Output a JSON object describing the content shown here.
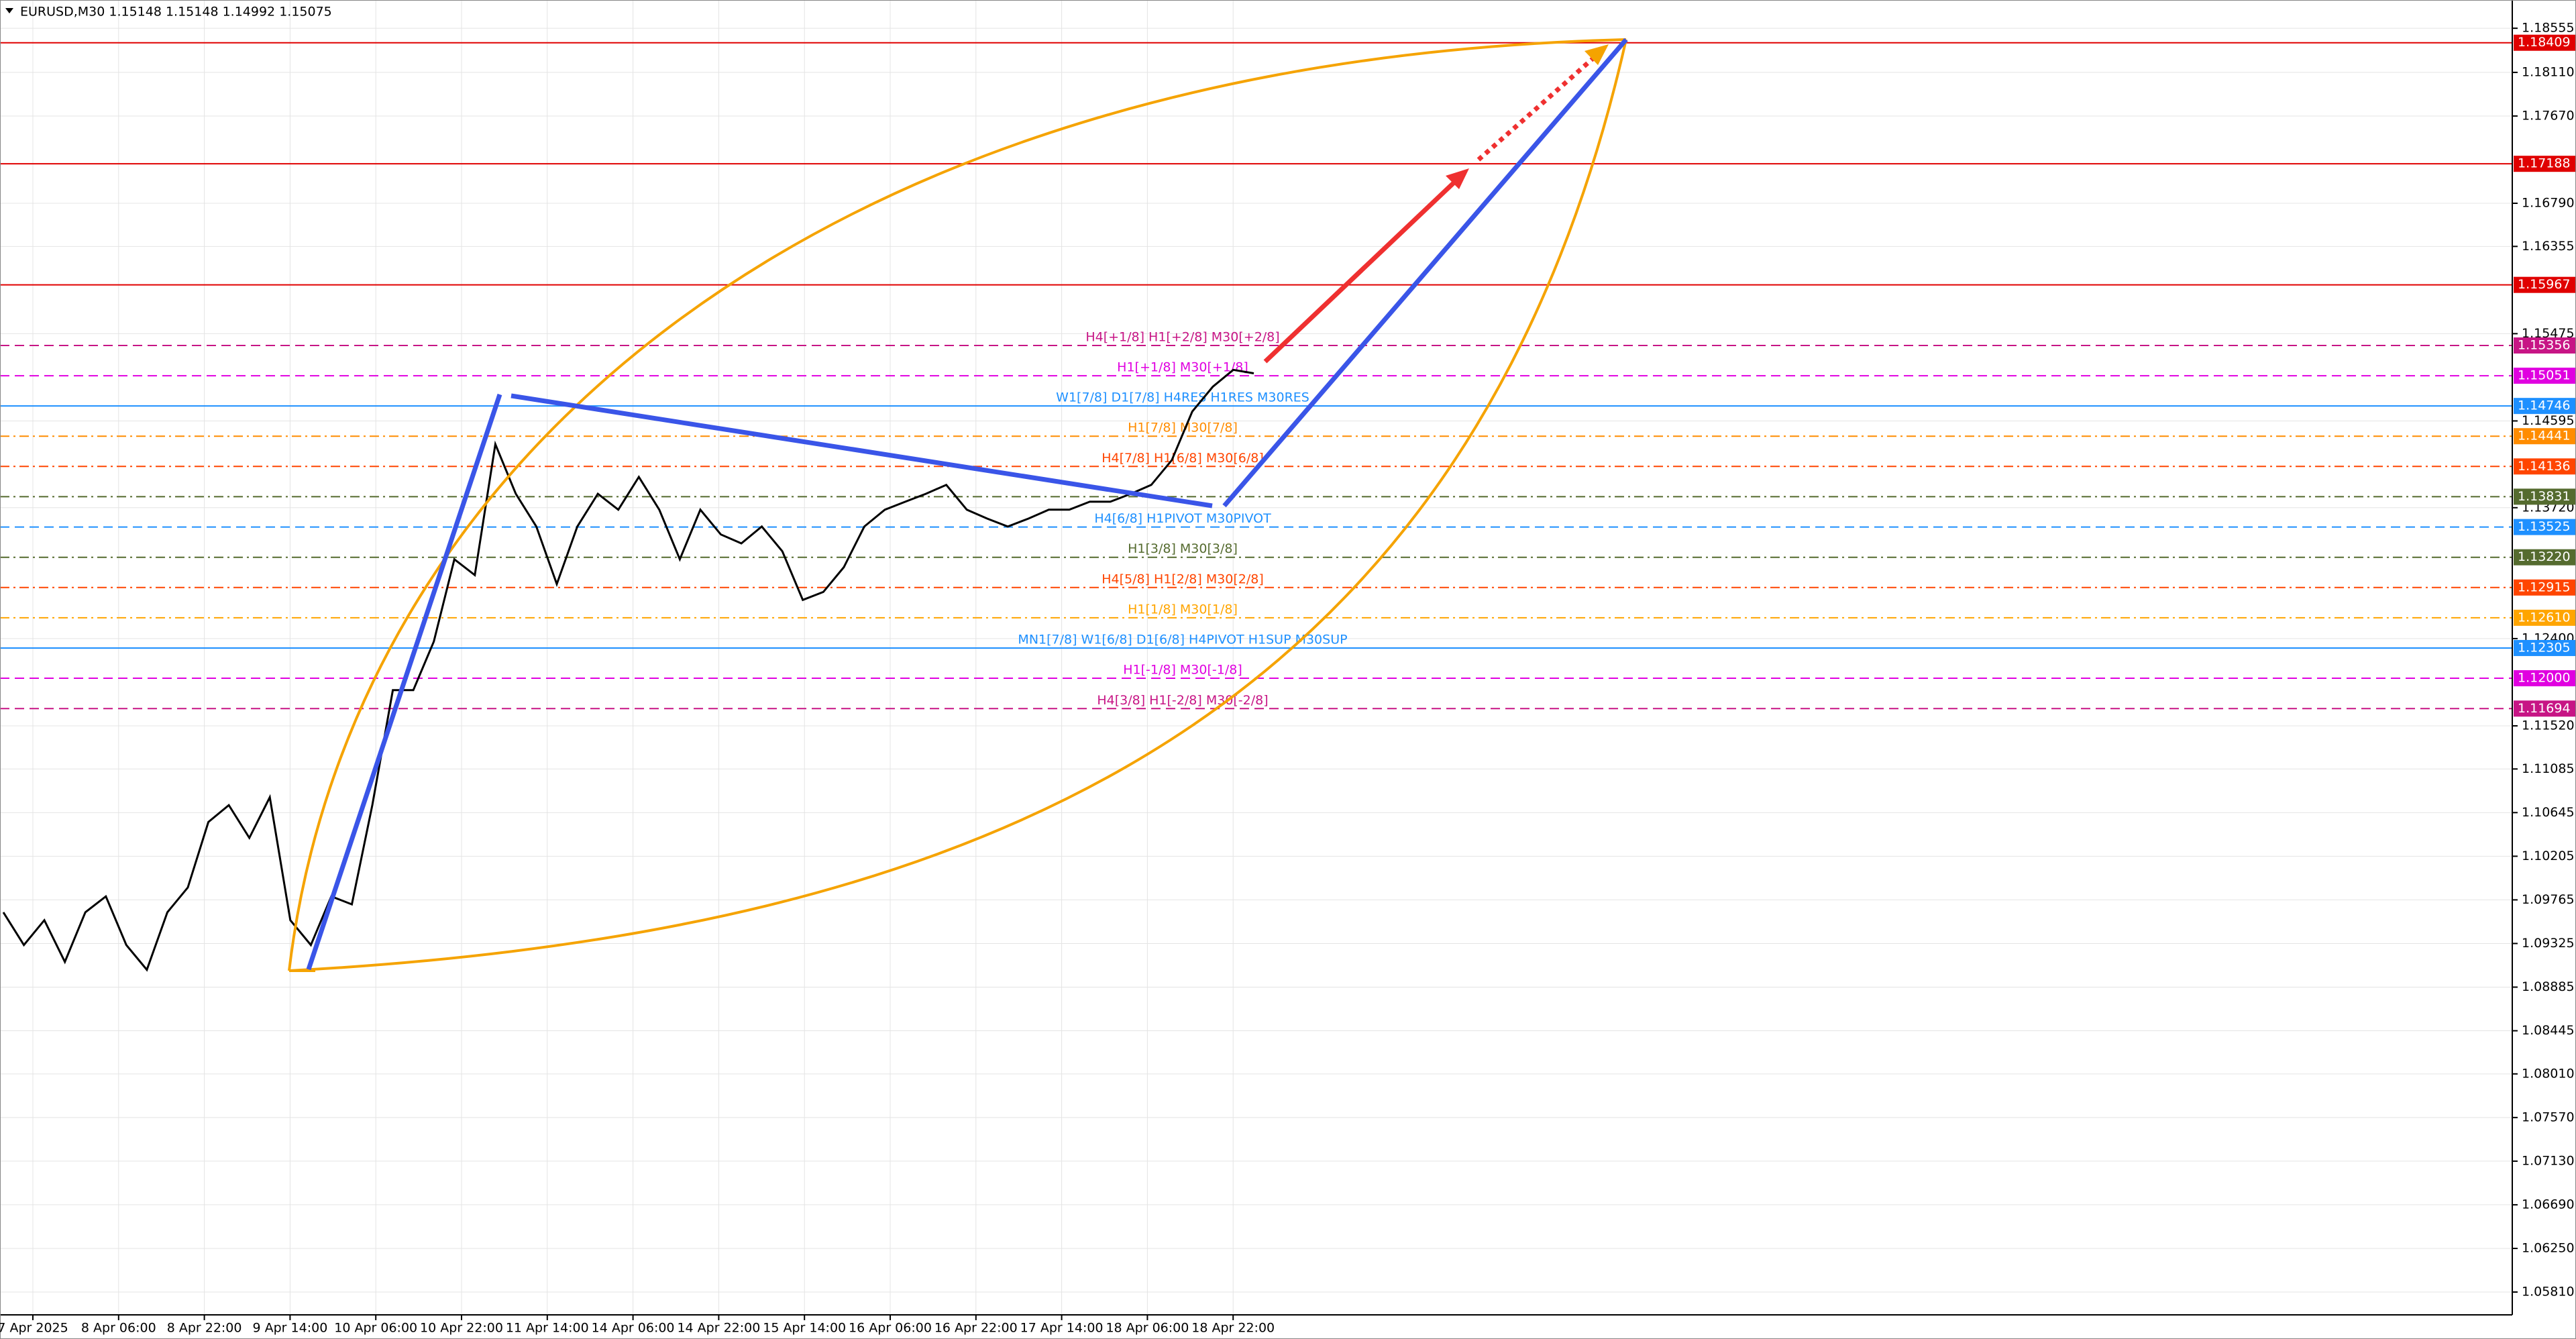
{
  "chart_data": {
    "type": "line",
    "title": "EURUSD,M30  1.15148 1.15148 1.14992 1.15075",
    "ylim": [
      1.0558,
      1.1884
    ],
    "yticks": [
      {
        "value": 1.18555,
        "label": "1.18555"
      },
      {
        "value": 1.1811,
        "label": "1.18110"
      },
      {
        "value": 1.1767,
        "label": "1.17670"
      },
      {
        "value": 1.1679,
        "label": "1.16790"
      },
      {
        "value": 1.16355,
        "label": "1.16355"
      },
      {
        "value": 1.15475,
        "label": "1.15475"
      },
      {
        "value": 1.14595,
        "label": "1.14595"
      },
      {
        "value": 1.1372,
        "label": "1.13720"
      },
      {
        "value": 1.124,
        "label": "1.12400"
      },
      {
        "value": 1.1152,
        "label": "1.11520"
      },
      {
        "value": 1.11085,
        "label": "1.11085"
      },
      {
        "value": 1.10645,
        "label": "1.10645"
      },
      {
        "value": 1.10205,
        "label": "1.10205"
      },
      {
        "value": 1.09765,
        "label": "1.09765"
      },
      {
        "value": 1.09325,
        "label": "1.09325"
      },
      {
        "value": 1.08885,
        "label": "1.08885"
      },
      {
        "value": 1.08445,
        "label": "1.08445"
      },
      {
        "value": 1.0801,
        "label": "1.08010"
      },
      {
        "value": 1.0757,
        "label": "1.07570"
      },
      {
        "value": 1.0713,
        "label": "1.07130"
      },
      {
        "value": 1.0669,
        "label": "1.06690"
      },
      {
        "value": 1.0625,
        "label": "1.06250"
      },
      {
        "value": 1.0581,
        "label": "1.05810"
      }
    ],
    "x_labels": [
      "7 Apr 2025",
      "8 Apr 06:00",
      "8 Apr 22:00",
      "9 Apr 14:00",
      "10 Apr 06:00",
      "10 Apr 22:00",
      "11 Apr 14:00",
      "14 Apr 06:00",
      "14 Apr 22:00",
      "15 Apr 14:00",
      "16 Apr 06:00",
      "16 Apr 22:00",
      "17 Apr 14:00",
      "18 Apr 06:00",
      "18 Apr 22:00"
    ],
    "grid": true,
    "series": [
      {
        "color": "#000000",
        "values": [
          1.0964,
          1.0931,
          1.0956,
          1.0914,
          1.0964,
          1.098,
          1.0931,
          1.0906,
          1.0964,
          1.0989,
          1.1055,
          1.1072,
          1.1039,
          1.108,
          1.0956,
          1.0931,
          1.098,
          1.0972,
          1.1072,
          1.1188,
          1.1188,
          1.1237,
          1.132,
          1.1304,
          1.1436,
          1.1386,
          1.1353,
          1.1295,
          1.1353,
          1.1386,
          1.137,
          1.1403,
          1.137,
          1.132,
          1.137,
          1.1345,
          1.1336,
          1.1353,
          1.1328,
          1.1279,
          1.1287,
          1.1312,
          1.1353,
          1.137,
          1.1378,
          1.1386,
          1.1395,
          1.137,
          1.1361,
          1.1353,
          1.1361,
          1.137,
          1.137,
          1.1378,
          1.1378,
          1.1386,
          1.1395,
          1.142,
          1.1469,
          1.1494,
          1.1511,
          1.15075
        ]
      }
    ],
    "levels": [
      {
        "value": 1.18409,
        "label": "1.18409",
        "color": "#e00000",
        "style": "solid"
      },
      {
        "value": 1.17188,
        "label": "1.17188",
        "color": "#e00000",
        "style": "solid"
      },
      {
        "value": 1.15967,
        "label": "1.15967",
        "color": "#e00000",
        "style": "solid"
      },
      {
        "value": 1.15356,
        "label": "1.15356",
        "color": "#c71585",
        "style": "dashed",
        "text": "H4[+1/8] H1[+2/8] M30[+2/8]"
      },
      {
        "value": 1.15051,
        "label": "1.15051",
        "color": "#e000e0",
        "style": "dashed",
        "text": "H1[+1/8] M30[+1/8]"
      },
      {
        "value": 1.14746,
        "label": "1.14746",
        "color": "#1e90ff",
        "style": "solid",
        "text": "W1[7/8] D1[7/8] H4RES H1RES M30RES"
      },
      {
        "value": 1.14441,
        "label": "1.14441",
        "color": "#ff8c00",
        "style": "dashdot",
        "text": "H1[7/8] M30[7/8]"
      },
      {
        "value": 1.14136,
        "label": "1.14136",
        "color": "#ff4500",
        "style": "dashdot",
        "text": "H4[7/8] H1[6/8] M30[6/8]"
      },
      {
        "value": 1.13831,
        "label": "1.13831",
        "color": "#556b2f",
        "style": "dashdot"
      },
      {
        "value": 1.13525,
        "label": "1.13525",
        "color": "#1e90ff",
        "style": "dashed",
        "text": "H4[6/8] H1PIVOT M30PIVOT"
      },
      {
        "value": 1.1322,
        "label": "1.13220",
        "color": "#556b2f",
        "style": "dashdot",
        "text": "H1[3/8] M30[3/8]"
      },
      {
        "value": 1.12915,
        "label": "1.12915",
        "color": "#ff4500",
        "style": "dashdot",
        "text": "H4[5/8] H1[2/8] M30[2/8]"
      },
      {
        "value": 1.1261,
        "label": "1.12610",
        "color": "#ffa500",
        "style": "dashdot",
        "text": "H1[1/8] M30[1/8]"
      },
      {
        "value": 1.12305,
        "label": "1.12305",
        "color": "#1e90ff",
        "style": "solid",
        "text": "MN1[7/8] W1[6/8] D1[6/8] H4PIVOT H1SUP M30SUP"
      },
      {
        "value": 1.12,
        "label": "1.12000",
        "color": "#e000e0",
        "style": "dashed",
        "text": "H1[-1/8] M30[-1/8]"
      },
      {
        "value": 1.11694,
        "label": "1.11694",
        "color": "#c71585",
        "style": "dashed",
        "text": "H4[3/8] H1[-2/8] M30[-2/8]"
      }
    ]
  }
}
